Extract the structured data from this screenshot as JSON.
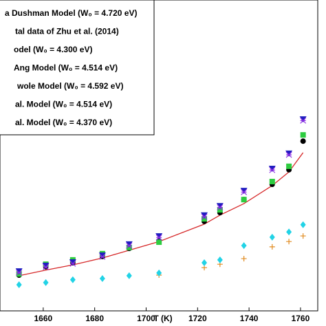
{
  "chart_data": {
    "type": "scatter",
    "x_label": "T (K)",
    "x": [
      1650.6,
      1661,
      1671.5,
      1683,
      1693.4,
      1705,
      1722.6,
      1728.7,
      1738,
      1749,
      1755.5,
      1761
    ],
    "xlim": [
      1643.2,
      1766.7
    ],
    "xticks": [
      1660,
      1680,
      1700,
      1720,
      1740,
      1760
    ],
    "ylim": [
      0,
      100
    ],
    "series": [
      {
        "name": "a Dushman Model (W₀ = 4.720 eV)",
        "color": "#d62728",
        "marker": "line",
        "values": [
          11.3,
          13.1,
          14.8,
          17.0,
          19.5,
          22.3,
          27.9,
          30.8,
          34.5,
          40.3,
          44.7,
          50.9
        ]
      },
      {
        "name": "tal data of Zhu et al. (2014)",
        "color": "#000000",
        "marker": "circle",
        "values": [
          11.5,
          14.2,
          15.5,
          17.5,
          20.1,
          22.6,
          28.8,
          31.6,
          35.8,
          40.7,
          45.4,
          54.6
        ]
      },
      {
        "name": "odel (W₀ = 4.300 eV)",
        "color": "#e08a1e",
        "marker": "plus",
        "values": [
          null,
          null,
          null,
          null,
          null,
          11.5,
          13.9,
          15.0,
          16.8,
          20.6,
          22.3,
          24.1
        ]
      },
      {
        "name": "Ang Model (W₀ = 4.514 eV)",
        "color": "#2ecc40",
        "marker": "square",
        "values": [
          11.9,
          15.0,
          16.4,
          18.4,
          20.4,
          22.1,
          29.6,
          32.5,
          35.8,
          41.6,
          46.5,
          56.6
        ]
      },
      {
        "name": "wole Model (W₀ = 4.592 eV)",
        "color": "#1f1fbf",
        "marker": "triangle",
        "values": [
          12.8,
          14.6,
          15.7,
          17.9,
          21.5,
          24.1,
          30.8,
          33.8,
          38.7,
          45.8,
          50.7,
          61.7
        ]
      },
      {
        "name": "al. Model (W₀ = 4.514 eV)",
        "color": "#8a2be2",
        "marker": "star",
        "values": [
          12.3,
          14.1,
          15.2,
          17.4,
          21.0,
          23.6,
          30.3,
          33.3,
          38.2,
          45.3,
          50.2,
          61.2
        ]
      },
      {
        "name": "al. Model (W₀ = 4.370 eV)",
        "color": "#22d3e6",
        "marker": "diamond",
        "values": [
          8.4,
          9.1,
          10.0,
          10.4,
          11.3,
          12.2,
          15.5,
          16.4,
          21.0,
          23.7,
          25.4,
          27.7
        ]
      }
    ]
  }
}
